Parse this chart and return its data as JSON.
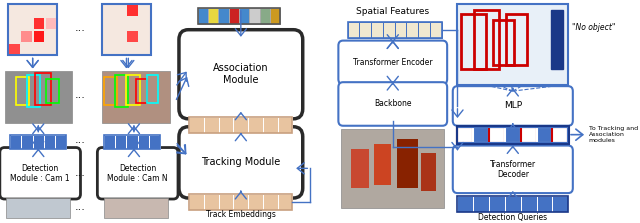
{
  "bg_color": "#ffffff",
  "colors": {
    "blue_border": "#4472c4",
    "black_border": "#2a2a2a",
    "peach_fill": "#e8c4a0",
    "peach_border": "#c8a080",
    "blue_fill": "#4472c4",
    "light_blue_fill": "#d0e4f4",
    "beige_fill": "#f0e8d0",
    "beige_border": "#b0a880",
    "arrow": "#4472c4",
    "red": "#cc0000",
    "dark_blue": "#1a3888"
  },
  "heatmap1_intensities": [
    [
      0.0,
      0.0,
      0.0,
      0.0
    ],
    [
      0.0,
      0.0,
      0.9,
      0.3
    ],
    [
      0.0,
      0.5,
      1.0,
      0.0
    ],
    [
      0.8,
      0.0,
      0.0,
      0.0
    ]
  ],
  "heatmap2_intensities": [
    [
      0.0,
      0.0,
      0.9,
      0.0
    ],
    [
      0.0,
      0.0,
      0.0,
      0.0
    ],
    [
      0.0,
      0.0,
      0.8,
      0.0
    ],
    [
      0.0,
      0.0,
      0.0,
      0.0
    ]
  ],
  "track_embed_colors": [
    "#4488cc",
    "#e8d840",
    "#4488cc",
    "#cc2222",
    "#4488cc",
    "#cccccc",
    "#88aa88",
    "#cc9920"
  ],
  "detection_queries_n": 7,
  "spatial_embed_n": 8,
  "peach_embed_n": 7,
  "output_embed_n": 7,
  "blue_embed_n": 5
}
